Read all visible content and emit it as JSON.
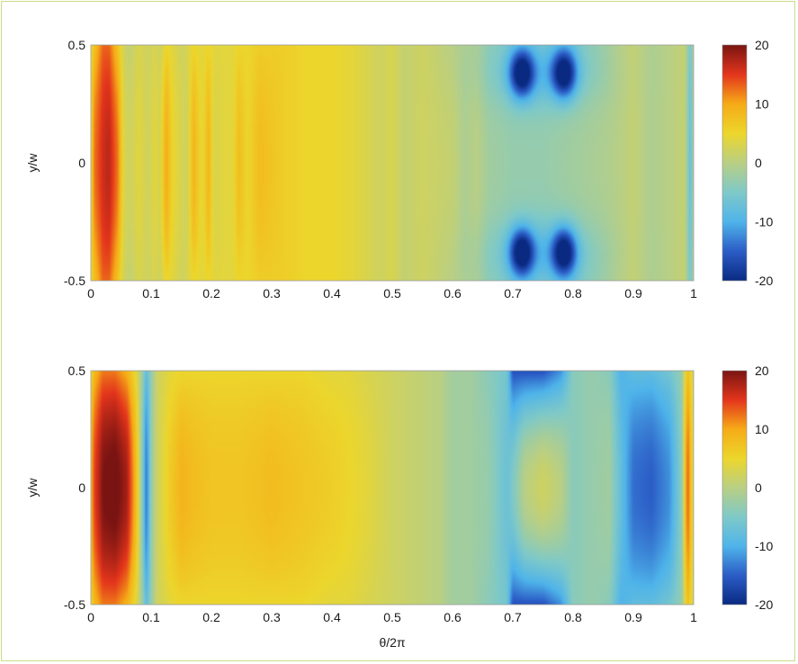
{
  "chart_data": [
    {
      "type": "heatmap",
      "panel": "top",
      "xlabel": "",
      "ylabel": "y/w",
      "xlim": [
        0,
        1
      ],
      "ylim": [
        -0.5,
        0.5
      ],
      "x_ticks": [
        "0",
        "0.1",
        "0.2",
        "0.3",
        "0.4",
        "0.5",
        "0.6",
        "0.7",
        "0.8",
        "0.9",
        "1"
      ],
      "y_ticks": [
        "-0.5",
        "0",
        "0.5"
      ],
      "colorbar": {
        "range": [
          -20,
          20
        ],
        "ticks": [
          "20",
          "10",
          "0",
          "-10",
          "-20"
        ]
      },
      "x_profile": {
        "x": [
          0,
          0.005,
          0.02,
          0.03,
          0.045,
          0.055,
          0.065,
          0.08,
          0.095,
          0.105,
          0.115,
          0.125,
          0.135,
          0.15,
          0.16,
          0.17,
          0.185,
          0.195,
          0.205,
          0.22,
          0.235,
          0.245,
          0.26,
          0.28,
          0.32,
          0.36,
          0.4,
          0.44,
          0.46,
          0.48,
          0.5,
          0.52,
          0.55,
          0.6,
          0.62,
          0.64,
          0.66,
          0.7,
          0.75,
          0.8,
          0.85,
          0.88,
          0.9,
          0.93,
          0.96,
          0.985,
          0.995,
          1.0
        ],
        "center": [
          4,
          12,
          16,
          17,
          12,
          3,
          2,
          4,
          2,
          4,
          3,
          10,
          5,
          3,
          2,
          9,
          4,
          9,
          3,
          4,
          4,
          8,
          5,
          8,
          6,
          5,
          5,
          4,
          3,
          2,
          3,
          1,
          2,
          1,
          -1,
          0,
          -2,
          -3,
          -3,
          -2,
          -1,
          0,
          1,
          -1,
          0,
          1,
          -8,
          0
        ],
        "edge": [
          4,
          7,
          13,
          13,
          7,
          2,
          1,
          3,
          2,
          3,
          2,
          5,
          4,
          2,
          3,
          5,
          4,
          5,
          4,
          4,
          4,
          5,
          5,
          6,
          6,
          5,
          5,
          4,
          3,
          2,
          3,
          1,
          2,
          0,
          -1,
          -1,
          -3,
          -4,
          -4,
          -4,
          -2,
          0,
          1,
          -1,
          0,
          1,
          -6,
          0
        ]
      },
      "features": [
        {
          "x": 0.715,
          "y": 0.38,
          "value": -17,
          "sx": 0.014,
          "sy": 0.07
        },
        {
          "x": 0.785,
          "y": 0.38,
          "value": -17,
          "sx": 0.014,
          "sy": 0.07
        },
        {
          "x": 0.715,
          "y": -0.38,
          "value": -17,
          "sx": 0.014,
          "sy": 0.07
        },
        {
          "x": 0.785,
          "y": -0.38,
          "value": -17,
          "sx": 0.014,
          "sy": 0.07
        },
        {
          "x": 0.75,
          "y": 0.38,
          "value": -5,
          "sx": 0.06,
          "sy": 0.1
        },
        {
          "x": 0.75,
          "y": -0.38,
          "value": -5,
          "sx": 0.06,
          "sy": 0.1
        }
      ]
    },
    {
      "type": "heatmap",
      "panel": "bottom",
      "xlabel": "θ/2π",
      "ylabel": "y/w",
      "xlim": [
        0,
        1
      ],
      "ylim": [
        -0.5,
        0.5
      ],
      "x_ticks": [
        "0",
        "0.1",
        "0.2",
        "0.3",
        "0.4",
        "0.5",
        "0.6",
        "0.7",
        "0.8",
        "0.9",
        "1"
      ],
      "y_ticks": [
        "-0.5",
        "0",
        "0.5"
      ],
      "colorbar": {
        "range": [
          -20,
          20
        ],
        "ticks": [
          "20",
          "10",
          "0",
          "-10",
          "-20"
        ]
      },
      "x_profile": {
        "x": [
          0,
          0.005,
          0.02,
          0.04,
          0.06,
          0.075,
          0.085,
          0.092,
          0.1,
          0.11,
          0.13,
          0.15,
          0.17,
          0.2,
          0.25,
          0.3,
          0.35,
          0.4,
          0.43,
          0.46,
          0.5,
          0.54,
          0.58,
          0.6,
          0.63,
          0.66,
          0.69,
          0.7,
          0.72,
          0.75,
          0.78,
          0.8,
          0.83,
          0.86,
          0.88,
          0.9,
          0.93,
          0.96,
          0.98,
          0.99,
          1.0
        ],
        "center": [
          8,
          14,
          20,
          21,
          18,
          8,
          -4,
          -14,
          -3,
          2,
          6,
          9,
          8,
          7,
          7,
          8,
          7,
          6,
          5,
          4,
          2,
          1,
          0,
          -2,
          -2,
          -3,
          -7,
          -5,
          0,
          2,
          0,
          -4,
          -3,
          -2,
          -8,
          -14,
          -15,
          -12,
          -4,
          14,
          2
        ],
        "edge": [
          4,
          8,
          12,
          12,
          9,
          4,
          -2,
          -8,
          -3,
          2,
          4,
          5,
          5,
          5,
          5,
          5,
          5,
          4,
          4,
          3,
          2,
          1,
          0,
          -2,
          -2,
          -4,
          -6,
          -16,
          -16,
          -16,
          -12,
          -4,
          -3,
          -4,
          -10,
          -8,
          -8,
          -6,
          -3,
          8,
          2
        ]
      },
      "features": []
    }
  ]
}
